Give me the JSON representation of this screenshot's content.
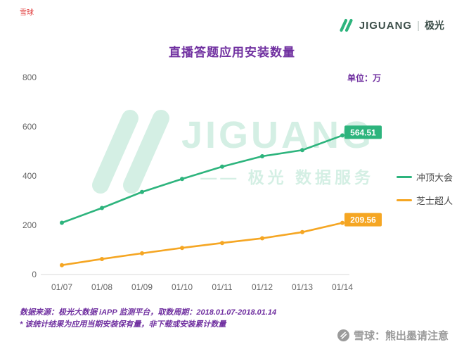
{
  "header": {
    "top_left_mark": "雪球",
    "logo": {
      "brand": "JIGUANG",
      "divider": "|",
      "brand_cn": "极光"
    }
  },
  "unit_label": "单位：万",
  "watermark": {
    "word": "JIGUANG",
    "tagline": "—— 极光 数据服务"
  },
  "footer": {
    "source": "数据来源：极光大数据 iAPP 监测平台，取数周期：2018.01.07-2018.01.14",
    "note": "* 该统计结果为应用当期安装保有量，非下载或安装累计数量",
    "xueqiu": "雪球：熊出墨请注意"
  },
  "colors": {
    "title_purple": "#7030a0",
    "brand_green": "#2db47d",
    "series_orange": "#f5a623",
    "red_mark": "#e03c3c",
    "gray_text": "#666666"
  },
  "chart_data": {
    "type": "line",
    "title": "直播答题应用安装数量",
    "unit": "万",
    "categories": [
      "01/07",
      "01/08",
      "01/09",
      "01/10",
      "01/11",
      "01/12",
      "01/13",
      "01/14"
    ],
    "series": [
      {
        "name": "冲顶大会",
        "color": "#2db47d",
        "values": [
          210,
          270,
          335,
          388,
          438,
          480,
          505,
          564.51
        ],
        "end_label": "564.51"
      },
      {
        "name": "芝士超人",
        "color": "#f5a623",
        "values": [
          38,
          63,
          86,
          108,
          128,
          147,
          172,
          209.56
        ],
        "end_label": "209.56"
      }
    ],
    "ylim": [
      0,
      800
    ],
    "yticks": [
      0,
      200,
      400,
      600,
      800
    ],
    "legend_position": "right",
    "grid": false
  }
}
